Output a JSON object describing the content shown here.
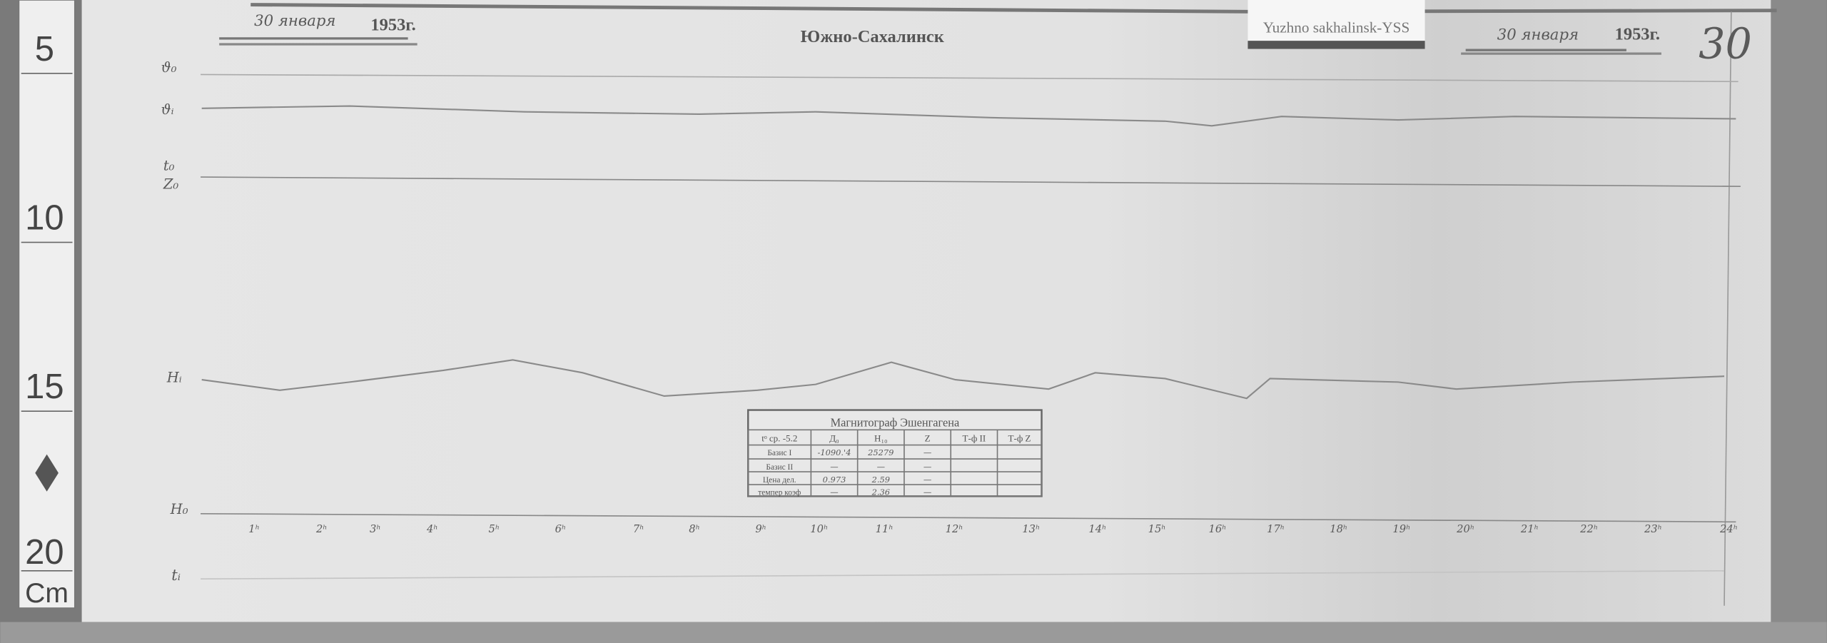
{
  "header": {
    "date_left": "30 января",
    "year_left": "1953г.",
    "station": "Южно-Сахалинск",
    "label_card": "Yuzhno sakhalinsk-YSS",
    "date_right": "30 января",
    "year_right": "1953г.",
    "day_number": "30"
  },
  "ruler": {
    "marks": [
      "5",
      "10",
      "15",
      "20"
    ],
    "unit": "Cm"
  },
  "trace_labels": {
    "theta0": "ϑ₀",
    "thetai": "ϑᵢ",
    "t0": "t₀",
    "z0": "Z₀",
    "hi": "Hᵢ",
    "h0": "H₀",
    "ti": "tᵢ"
  },
  "hours": [
    "1ʰ",
    "2ʰ",
    "3ʰ",
    "4ʰ",
    "5ʰ",
    "6ʰ",
    "7ʰ",
    "8ʰ",
    "9ʰ",
    "10ʰ",
    "11ʰ",
    "12ʰ",
    "13ʰ",
    "14ʰ",
    "15ʰ",
    "16ʰ",
    "17ʰ",
    "18ʰ",
    "19ʰ",
    "20ʰ",
    "21ʰ",
    "22ʰ",
    "23ʰ",
    "24ʰ"
  ],
  "stamp": {
    "title": "Магнитограф Эшенгагена",
    "headers": [
      "tᵒ ср. -5.2",
      "Д₀",
      "H₁₀",
      "Z",
      "Т-ф II",
      "Т-ф Z"
    ],
    "rows": [
      [
        "Базис I",
        "-1090.'4",
        "25279",
        "—",
        "",
        ""
      ],
      [
        "Базис II",
        "—",
        "—",
        "—",
        "",
        ""
      ],
      [
        "Цена дел.",
        "0.973",
        "2.59",
        "—",
        "",
        ""
      ],
      [
        "темпер коэф",
        "—",
        "2.36",
        "—",
        "",
        ""
      ]
    ]
  },
  "colors": {
    "paper": "#e4e4e4",
    "trace": "#8a8a8a",
    "ink": "#555555"
  }
}
